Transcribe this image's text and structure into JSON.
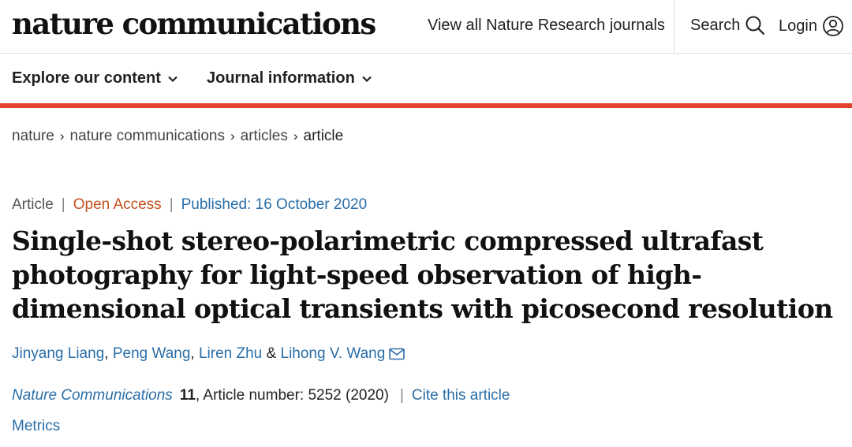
{
  "header": {
    "logo": "nature communications",
    "journals_link": "View all Nature Research journals",
    "search_label": "Search",
    "login_label": "Login"
  },
  "nav": {
    "explore": "Explore our content",
    "journal_info": "Journal information"
  },
  "breadcrumb": {
    "items": [
      "nature",
      "nature communications",
      "articles",
      "article"
    ]
  },
  "meta": {
    "type": "Article",
    "access": "Open Access",
    "published": "Published: 16 October 2020"
  },
  "article": {
    "title": "Single-shot stereo-polarimetric compressed ultrafast photography for light-speed observation of high-dimensional optical transients with picosecond resolution"
  },
  "authors": {
    "list": [
      "Jinyang Liang",
      "Peng Wang",
      "Liren Zhu",
      "Lihong V. Wang"
    ],
    "separators": [
      ",",
      ",",
      "&"
    ]
  },
  "citation": {
    "journal": "Nature Communications",
    "volume": "11",
    "article_number": ", Article number: 5252 (2020)",
    "cite_link": "Cite this article"
  },
  "metrics_label": "Metrics",
  "colors": {
    "accent_bar": "#e2412d",
    "link_blue": "#2a6ea8",
    "open_access": "#c4501c"
  },
  "icons": [
    "search-icon",
    "user-icon",
    "chevron-down-icon",
    "chevron-right-icon",
    "envelope-icon"
  ]
}
